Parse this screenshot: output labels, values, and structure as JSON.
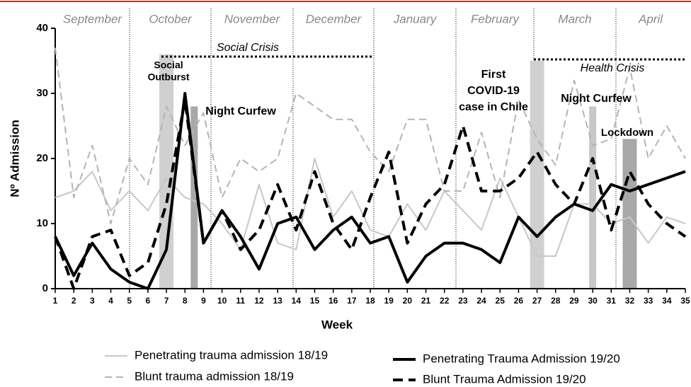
{
  "chart_data": {
    "type": "line",
    "xlabel": "Week",
    "ylabel": "Nº Admission",
    "x": [
      1,
      2,
      3,
      4,
      5,
      6,
      7,
      8,
      9,
      10,
      11,
      12,
      13,
      14,
      15,
      16,
      17,
      18,
      19,
      20,
      21,
      22,
      23,
      24,
      25,
      26,
      27,
      28,
      29,
      30,
      31,
      32,
      33,
      34,
      35
    ],
    "xlim": [
      1,
      35
    ],
    "xticks": [
      1,
      2,
      3,
      4,
      5,
      6,
      7,
      8,
      9,
      10,
      11,
      12,
      13,
      14,
      15,
      16,
      17,
      18,
      19,
      20,
      21,
      22,
      23,
      24,
      25,
      26,
      27,
      28,
      29,
      30,
      31,
      32,
      33,
      34,
      35
    ],
    "ylim": [
      0,
      40
    ],
    "yticks": [
      0,
      10,
      20,
      30,
      40
    ],
    "months": [
      "September",
      "October",
      "November",
      "December",
      "January",
      "February",
      "March",
      "April"
    ],
    "series": [
      {
        "name": "Penetrating trauma admission 18/19",
        "color": "#c8c8c8",
        "line_style": "solid",
        "width": 2,
        "values": [
          14,
          15,
          18,
          12,
          15,
          12,
          17,
          14,
          13,
          10,
          6,
          16,
          7,
          6,
          20,
          11,
          15,
          9,
          8,
          13,
          9,
          15,
          12,
          9,
          17,
          11,
          5,
          5,
          13,
          13,
          10,
          11,
          7,
          11,
          10
        ]
      },
      {
        "name": "Blunt trauma admission 18/19",
        "color": "#b4b4b4",
        "line_style": "dashed",
        "width": 2,
        "values": [
          37,
          14,
          22,
          10,
          20,
          16,
          28,
          22,
          27,
          14,
          20,
          18,
          20,
          30,
          28,
          26,
          26,
          21,
          18,
          26,
          26,
          15,
          15,
          24,
          14,
          29,
          23,
          19,
          32,
          22,
          23,
          34,
          20,
          25,
          20
        ]
      },
      {
        "name": "Penetrating Trauma Admission 19/20",
        "color": "#000000",
        "line_style": "solid",
        "width": 4,
        "values": [
          8,
          2,
          7,
          3,
          1,
          0,
          6,
          30,
          7,
          12,
          8,
          3,
          10,
          11,
          6,
          9,
          11,
          7,
          8,
          1,
          5,
          7,
          7,
          6,
          4,
          11,
          8,
          11,
          13,
          12,
          16,
          15,
          16,
          17,
          18
        ]
      },
      {
        "name": "Blunt Trauma Admission 19/20",
        "color": "#000000",
        "line_style": "dashed",
        "width": 4,
        "values": [
          8,
          0,
          8,
          9,
          2,
          4,
          13,
          29,
          7,
          12,
          6,
          9,
          16,
          9,
          18,
          10,
          6,
          14,
          21,
          7,
          13,
          16,
          25,
          15,
          15,
          17,
          21,
          16,
          13,
          20,
          9,
          18,
          13,
          10,
          8
        ]
      }
    ],
    "annotations": [
      {
        "lines": [
          "Social Crisis"
        ]
      },
      {
        "lines": [
          "Health Crisis"
        ]
      },
      {
        "lines": [
          "Social",
          "Outburst"
        ]
      },
      {
        "lines": [
          "Night Curfew"
        ]
      },
      {
        "lines": [
          "First",
          "COVID-19",
          "case in Chile"
        ]
      },
      {
        "lines": [
          "Night Curfew"
        ]
      },
      {
        "lines": [
          "Lockdown"
        ]
      }
    ]
  }
}
